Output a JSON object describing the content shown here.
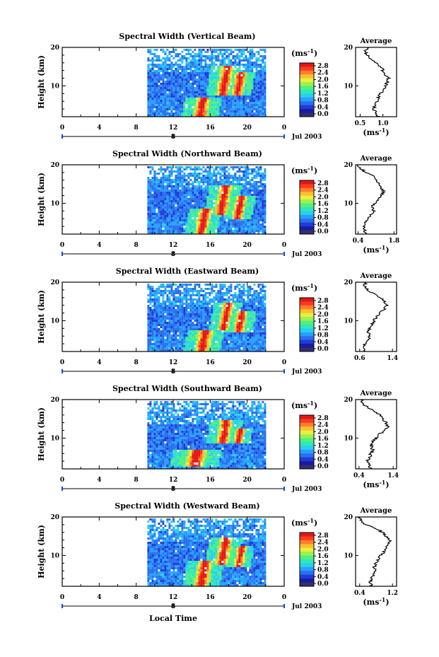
{
  "chart_data": [
    {
      "type": "heatmap",
      "title": "Spectral Width (Vertical Beam)",
      "ylabel": "Height (km)",
      "y_ticks": [
        10,
        20
      ],
      "x_ticks": [
        "0",
        "4",
        "8",
        "12",
        "16",
        "20",
        "0"
      ],
      "ylim": [
        2,
        20
      ],
      "xlim": [
        0,
        24
      ],
      "date_tick": "8",
      "date_label": "Jul 2003",
      "data_start_hour": 9.2,
      "data_end_hour": 22,
      "colorbar": {
        "unit_label": "(ms",
        "unit_exp": "-1",
        "unit_close": ")",
        "ticks": [
          "2.8",
          "2.4",
          "2.0",
          "1.6",
          "1.2",
          "0.8",
          "0.4",
          "0.0"
        ]
      },
      "features": [
        {
          "center_hour": 14.8,
          "bottom_km": 2.5,
          "top_km": 7.5,
          "width_h": 0.9
        },
        {
          "center_hour": 17.2,
          "bottom_km": 8,
          "top_km": 15.5,
          "width_h": 0.8
        },
        {
          "center_hour": 18.8,
          "bottom_km": 8,
          "top_km": 14,
          "width_h": 0.7
        }
      ],
      "average": {
        "title": "Average",
        "x_ticks": [
          "0.5",
          "1.0"
        ],
        "xlim": [
          0.4,
          1.3
        ],
        "y_ticks": [
          10,
          20
        ],
        "ylim": [
          2,
          20
        ],
        "xlabel": "(ms",
        "xlabel_exp": "-1",
        "xlabel_close": ")",
        "profile": [
          [
            2,
            0.9
          ],
          [
            3,
            0.85
          ],
          [
            4,
            0.8
          ],
          [
            5,
            0.82
          ],
          [
            6,
            0.88
          ],
          [
            7,
            0.9
          ],
          [
            8,
            0.95
          ],
          [
            9,
            1.0
          ],
          [
            10,
            1.05
          ],
          [
            11,
            1.1
          ],
          [
            12,
            1.12
          ],
          [
            13,
            1.05
          ],
          [
            14,
            1.0
          ],
          [
            15,
            0.95
          ],
          [
            16,
            0.85
          ],
          [
            17,
            0.75
          ],
          [
            18,
            0.65
          ],
          [
            19,
            0.6
          ],
          [
            20,
            0.7
          ]
        ]
      }
    },
    {
      "type": "heatmap",
      "title": "Spectral Width (Northward Beam)",
      "ylabel": "Height (km)",
      "y_ticks": [
        10,
        20
      ],
      "x_ticks": [
        "0",
        "4",
        "8",
        "12",
        "16",
        "20",
        "0"
      ],
      "ylim": [
        2,
        20
      ],
      "xlim": [
        0,
        24
      ],
      "date_tick": "8",
      "date_label": "Jul 2003",
      "data_start_hour": 9.2,
      "data_end_hour": 22,
      "colorbar": {
        "unit_label": "(ms",
        "unit_exp": "-1",
        "unit_close": ")",
        "ticks": [
          "2.8",
          "2.4",
          "2.0",
          "1.6",
          "1.2",
          "0.8",
          "0.4",
          "0.0"
        ]
      },
      "features": [
        {
          "center_hour": 14.9,
          "bottom_km": 2.5,
          "top_km": 9,
          "width_h": 0.8
        },
        {
          "center_hour": 17.0,
          "bottom_km": 7.5,
          "top_km": 15,
          "width_h": 0.8
        },
        {
          "center_hour": 18.8,
          "bottom_km": 6,
          "top_km": 12,
          "width_h": 0.7
        }
      ],
      "average": {
        "title": "Average",
        "x_ticks": [
          "0.4",
          "1.8"
        ],
        "xlim": [
          0.3,
          1.9
        ],
        "y_ticks": [
          10,
          20
        ],
        "ylim": [
          2,
          20
        ],
        "xlabel": "(ms",
        "xlabel_exp": "-1",
        "xlabel_close": ")",
        "profile": [
          [
            2,
            0.7
          ],
          [
            3,
            0.65
          ],
          [
            4,
            0.6
          ],
          [
            5,
            0.7
          ],
          [
            6,
            0.75
          ],
          [
            7,
            0.9
          ],
          [
            8,
            1.0
          ],
          [
            9,
            0.95
          ],
          [
            10,
            1.05
          ],
          [
            11,
            1.2
          ],
          [
            12,
            1.3
          ],
          [
            13,
            1.4
          ],
          [
            14,
            1.3
          ],
          [
            15,
            1.2
          ],
          [
            16,
            1.1
          ],
          [
            17,
            1.0
          ],
          [
            18,
            0.7
          ],
          [
            19,
            0.5
          ],
          [
            20,
            0.4
          ]
        ]
      }
    },
    {
      "type": "heatmap",
      "title": "Spectral Width (Eastward Beam)",
      "ylabel": "Height (km)",
      "y_ticks": [
        10,
        20
      ],
      "x_ticks": [
        "0",
        "4",
        "8",
        "12",
        "16",
        "20",
        "0"
      ],
      "ylim": [
        2,
        20
      ],
      "xlim": [
        0,
        24
      ],
      "date_tick": "8",
      "date_label": "Jul 2003",
      "data_start_hour": 9.2,
      "data_end_hour": 22,
      "colorbar": {
        "unit_label": "(ms",
        "unit_exp": "-1",
        "unit_close": ")",
        "ticks": [
          "2.8",
          "2.4",
          "2.0",
          "1.6",
          "1.2",
          "0.8",
          "0.4",
          "0.0"
        ]
      },
      "features": [
        {
          "center_hour": 15.0,
          "bottom_km": 2.5,
          "top_km": 8,
          "width_h": 0.9
        },
        {
          "center_hour": 17.3,
          "bottom_km": 8,
          "top_km": 15,
          "width_h": 0.7
        },
        {
          "center_hour": 18.9,
          "bottom_km": 7,
          "top_km": 13,
          "width_h": 0.7
        }
      ],
      "average": {
        "title": "Average",
        "x_ticks": [
          "0.6",
          "1.4"
        ],
        "xlim": [
          0.5,
          1.5
        ],
        "y_ticks": [
          10,
          20
        ],
        "ylim": [
          2,
          20
        ],
        "xlabel": "",
        "xlabel_exp": "",
        "xlabel_close": "",
        "profile": [
          [
            2,
            0.75
          ],
          [
            3,
            0.7
          ],
          [
            4,
            0.72
          ],
          [
            5,
            0.8
          ],
          [
            6,
            0.85
          ],
          [
            7,
            0.8
          ],
          [
            8,
            0.85
          ],
          [
            9,
            0.9
          ],
          [
            10,
            0.95
          ],
          [
            11,
            1.0
          ],
          [
            12,
            1.1
          ],
          [
            13,
            1.2
          ],
          [
            14,
            1.25
          ],
          [
            15,
            1.2
          ],
          [
            16,
            1.1
          ],
          [
            17,
            0.95
          ],
          [
            18,
            0.8
          ],
          [
            19,
            0.7
          ],
          [
            20,
            0.75
          ]
        ]
      }
    },
    {
      "type": "heatmap",
      "title": "Spectral Width (Southward Beam)",
      "ylabel": "Height (km)",
      "y_ticks": [
        10,
        20
      ],
      "x_ticks": [
        "0",
        "4",
        "8",
        "12",
        "16",
        "20",
        "0"
      ],
      "ylim": [
        2,
        20
      ],
      "xlim": [
        0,
        24
      ],
      "date_tick": "8",
      "date_label": "Jul 2003",
      "data_start_hour": 9.2,
      "data_end_hour": 22,
      "colorbar": {
        "unit_label": "(ms",
        "unit_exp": "-1",
        "unit_close": ")",
        "ticks": [
          "2.8",
          "2.4",
          "2.0",
          "1.6",
          "1.2",
          "0.8",
          "0.4",
          "0.0"
        ]
      },
      "features": [
        {
          "center_hour": 14.2,
          "bottom_km": 3,
          "top_km": 7,
          "width_h": 1.2
        },
        {
          "center_hour": 17.2,
          "bottom_km": 9,
          "top_km": 15,
          "width_h": 0.8
        },
        {
          "center_hour": 18.9,
          "bottom_km": 9,
          "top_km": 13,
          "width_h": 0.6
        }
      ],
      "average": {
        "title": "Average",
        "x_ticks": [
          "0.4",
          "1.4"
        ],
        "xlim": [
          0.3,
          1.5
        ],
        "y_ticks": [
          10,
          20
        ],
        "ylim": [
          2,
          20
        ],
        "xlabel": "(ms",
        "xlabel_exp": "-1",
        "xlabel_close": ")",
        "profile": [
          [
            2,
            0.75
          ],
          [
            3,
            0.7
          ],
          [
            4,
            0.65
          ],
          [
            5,
            0.7
          ],
          [
            6,
            0.75
          ],
          [
            7,
            0.8
          ],
          [
            8,
            0.75
          ],
          [
            9,
            0.8
          ],
          [
            10,
            0.9
          ],
          [
            11,
            1.0
          ],
          [
            12,
            1.15
          ],
          [
            13,
            1.25
          ],
          [
            14,
            1.2
          ],
          [
            15,
            1.1
          ],
          [
            16,
            1.0
          ],
          [
            17,
            0.85
          ],
          [
            18,
            0.65
          ],
          [
            19,
            0.5
          ],
          [
            20,
            0.45
          ]
        ]
      }
    },
    {
      "type": "heatmap",
      "title": "Spectral Width (Westward Beam)",
      "ylabel": "Height (km)",
      "y_ticks": [
        10,
        20
      ],
      "x_ticks": [
        "0",
        "4",
        "8",
        "12",
        "16",
        "20",
        "0"
      ],
      "ylim": [
        2,
        20
      ],
      "xlim": [
        0,
        24
      ],
      "date_tick": "8",
      "date_label": "Jul 2003",
      "data_start_hour": 9.2,
      "data_end_hour": 22,
      "colorbar": {
        "unit_label": "(ms",
        "unit_exp": "-1",
        "unit_close": ")",
        "ticks": [
          "2.8",
          "2.4",
          "2.0",
          "1.6",
          "1.2",
          "0.8",
          "0.4",
          "0.0"
        ]
      },
      "features": [
        {
          "center_hour": 14.9,
          "bottom_km": 2.5,
          "top_km": 9,
          "width_h": 0.9
        },
        {
          "center_hour": 17.1,
          "bottom_km": 8,
          "top_km": 15,
          "width_h": 0.8
        },
        {
          "center_hour": 18.9,
          "bottom_km": 7,
          "top_km": 13,
          "width_h": 0.6
        }
      ],
      "average": {
        "title": "Average",
        "x_ticks": [
          "0.4",
          "1.2"
        ],
        "xlim": [
          0.3,
          1.3
        ],
        "y_ticks": [
          10,
          20
        ],
        "ylim": [
          2,
          20
        ],
        "xlabel": "(ms",
        "xlabel_exp": "-1",
        "xlabel_close": ")",
        "profile": [
          [
            2,
            0.7
          ],
          [
            3,
            0.65
          ],
          [
            4,
            0.68
          ],
          [
            5,
            0.75
          ],
          [
            6,
            0.8
          ],
          [
            7,
            0.75
          ],
          [
            8,
            0.8
          ],
          [
            9,
            0.85
          ],
          [
            10,
            0.9
          ],
          [
            11,
            1.0
          ],
          [
            12,
            1.05
          ],
          [
            13,
            1.1
          ],
          [
            14,
            1.15
          ],
          [
            15,
            1.05
          ],
          [
            16,
            0.95
          ],
          [
            17,
            0.8
          ],
          [
            18,
            0.55
          ],
          [
            19,
            0.45
          ],
          [
            20,
            0.4
          ]
        ]
      }
    }
  ],
  "x_axis_label": "Local Time",
  "colors": {
    "colormap": [
      "#303070",
      "#1a1aa0",
      "#1e3cd8",
      "#2a6ef0",
      "#28a0ff",
      "#28d0f0",
      "#30e8b8",
      "#50f080",
      "#9ef050",
      "#e8f040",
      "#ffc030",
      "#ff8028",
      "#ff3a20",
      "#e01818"
    ],
    "axis": "#000000",
    "date_marker": "#1a3cff"
  }
}
